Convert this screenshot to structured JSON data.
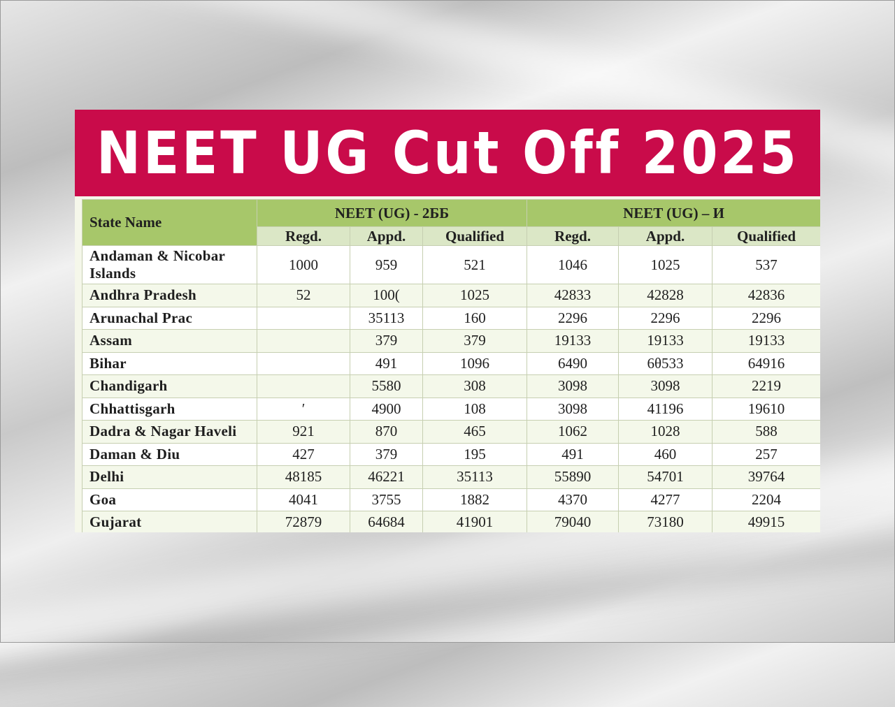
{
  "banner": {
    "title": "NEET UG Cut Off 2025"
  },
  "table": {
    "state_header": "State Name",
    "groups": [
      "NEET (UG) - 2ББ",
      "NEET (UG) – И"
    ],
    "subheaders": [
      "Regd.",
      "Appd.",
      "Qualified",
      "Regd.",
      "Appd.",
      "Qualified"
    ],
    "rows": [
      {
        "state": "Andaman & Nicobar Islands",
        "values": [
          "1000",
          "959",
          "521",
          "1046",
          "1025",
          "537"
        ]
      },
      {
        "state": "Andhra Pradesh",
        "values": [
          "52",
          "100(",
          "1025",
          "42833",
          "42828",
          "42836"
        ]
      },
      {
        "state": "Arunachal Prac",
        "values": [
          "",
          "35113",
          "160",
          "2296",
          "2296",
          "2296"
        ]
      },
      {
        "state": "Assam",
        "values": [
          "",
          "379",
          "379",
          "19133",
          "19133",
          "19133"
        ]
      },
      {
        "state": "Bihar",
        "values": [
          "",
          "491",
          "1096",
          "6490",
          "6θ533",
          "64916"
        ]
      },
      {
        "state": "Chandigarh",
        "values": [
          "",
          "5580",
          "308",
          "3098",
          "3098",
          "2219"
        ]
      },
      {
        "state": "Chhattisgarh",
        "values": [
          "′",
          "4900",
          "108",
          "3098",
          "41196",
          "19610"
        ]
      },
      {
        "state": "Dadra & Nagar Haveli",
        "values": [
          "921",
          "870",
          "465",
          "1062",
          "1028",
          "588"
        ]
      },
      {
        "state": "Daman & Diu",
        "values": [
          "427",
          "379",
          "195",
          "491",
          "460",
          "257"
        ]
      },
      {
        "state": "Delhi",
        "values": [
          "48185",
          "46221",
          "35113",
          "55890",
          "54701",
          "39764"
        ]
      },
      {
        "state": "Goa",
        "values": [
          "4041",
          "3755",
          "1882",
          "4370",
          "4277",
          "2204"
        ]
      },
      {
        "state": "Gujarat",
        "values": [
          "72879",
          "64684",
          "41901",
          "79040",
          "73180",
          "49915"
        ]
      }
    ]
  },
  "colors": {
    "banner": "#c90b4a",
    "header": "#a7c76a",
    "row_alt": "#f4f8ea"
  }
}
